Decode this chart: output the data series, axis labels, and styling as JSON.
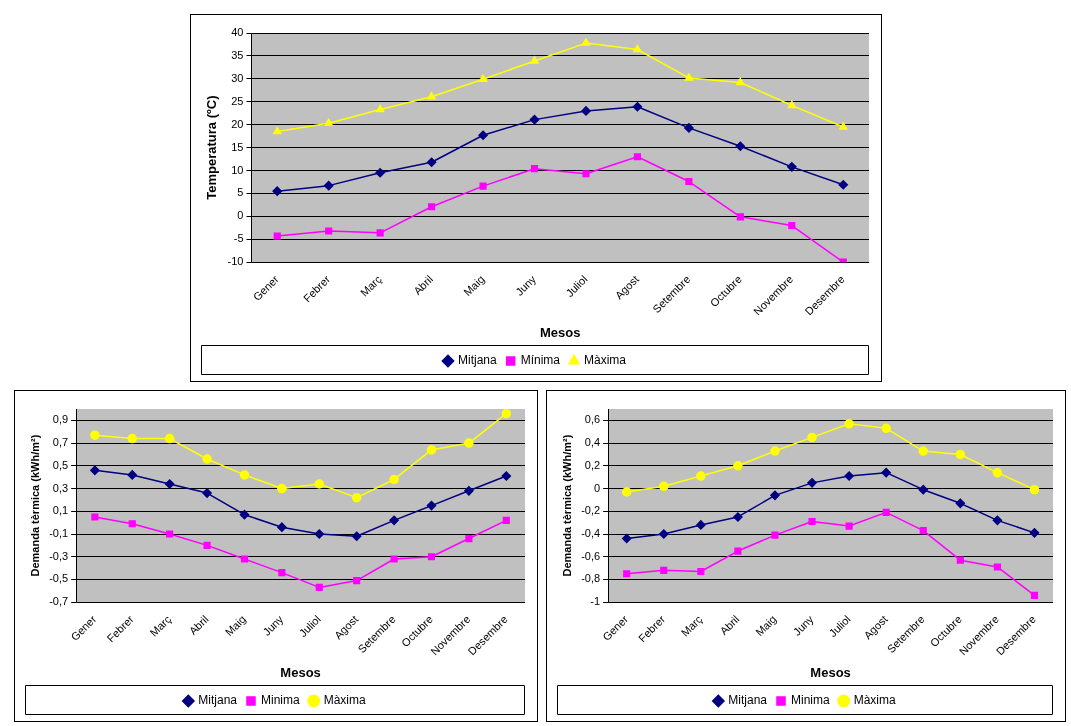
{
  "chart_data": [
    {
      "type": "line",
      "xlabel": "Mesos",
      "ylabel": "Temperatura (ºC)",
      "categories": [
        "Gener",
        "Febrer",
        "Març",
        "Abril",
        "Maig",
        "Juny",
        "Juliol",
        "Agost",
        "Setembre",
        "Octubre",
        "Novembre",
        "Desembre"
      ],
      "series": [
        {
          "name": "Mitjana",
          "color": "#000080",
          "marker": "diamond",
          "values": [
            5.5,
            6.7,
            9.5,
            11.8,
            17.7,
            21.1,
            23,
            23.9,
            19.3,
            15.3,
            10.8,
            6.9
          ]
        },
        {
          "name": "Mínima",
          "color": "#ff00ff",
          "marker": "square",
          "values": [
            -4.3,
            -3.2,
            -3.6,
            2.1,
            6.6,
            10.4,
            9.3,
            13,
            7.6,
            -0.1,
            -2,
            -10
          ]
        },
        {
          "name": "Màxima",
          "color": "#ffff00",
          "marker": "triangle",
          "values": [
            18.5,
            20.3,
            23.3,
            26.1,
            29.9,
            33.9,
            37.8,
            36.4,
            30.2,
            29.2,
            24.2,
            19.5
          ]
        }
      ],
      "ylim": [
        -10,
        40
      ],
      "yticks": [
        -10,
        -5,
        0,
        5,
        10,
        15,
        20,
        25,
        30,
        35,
        40
      ],
      "grid": "y",
      "legend": "bottom"
    },
    {
      "type": "line",
      "xlabel": "Mesos",
      "ylabel": "Demanda tèrmica (kWh/m²)",
      "categories": [
        "Gener",
        "Febrer",
        "Març",
        "Abril",
        "Maig",
        "Juny",
        "Juliol",
        "Agost",
        "Setembre",
        "Octubre",
        "Novembre",
        "Desembre"
      ],
      "series": [
        {
          "name": "Mitjana",
          "color": "#000080",
          "marker": "diamond",
          "values": [
            0.46,
            0.42,
            0.34,
            0.26,
            0.07,
            -0.04,
            -0.1,
            -0.12,
            0.02,
            0.15,
            0.28,
            0.41
          ]
        },
        {
          "name": "Minima",
          "color": "#ff00ff",
          "marker": "square",
          "values": [
            0.05,
            -0.01,
            -0.1,
            -0.2,
            -0.32,
            -0.44,
            -0.57,
            -0.51,
            -0.32,
            -0.3,
            -0.14,
            0.02
          ]
        },
        {
          "name": "Màxima",
          "color": "#ffff00",
          "marker": "circle",
          "values": [
            0.77,
            0.74,
            0.74,
            0.56,
            0.42,
            0.3,
            0.34,
            0.22,
            0.38,
            0.64,
            0.7,
            0.96
          ]
        }
      ],
      "ylim": [
        -0.7,
        1.0
      ],
      "yticks": [
        {
          "value": -0.7,
          "label": "-0,7"
        },
        {
          "value": -0.5,
          "label": "-0,5"
        },
        {
          "value": -0.3,
          "label": "-0,3"
        },
        {
          "value": -0.1,
          "label": "-0,1"
        },
        {
          "value": 0.1,
          "label": "0,1"
        },
        {
          "value": 0.3,
          "label": "0,3"
        },
        {
          "value": 0.5,
          "label": "0,5"
        },
        {
          "value": 0.7,
          "label": "0,7"
        },
        {
          "value": 0.9,
          "label": "0,9"
        }
      ],
      "grid": "y",
      "legend": "bottom"
    },
    {
      "type": "line",
      "xlabel": "Mesos",
      "ylabel": "Demanda tèrmica (kWh/m²)",
      "categories": [
        "Gener",
        "Febrer",
        "Març",
        "Abril",
        "Maig",
        "Juny",
        "Juliol",
        "Agost",
        "Setembre",
        "Octubre",
        "Novembre",
        "Desembre"
      ],
      "series": [
        {
          "name": "Mitjana",
          "color": "#000080",
          "marker": "diamond",
          "values": [
            -0.44,
            -0.4,
            -0.32,
            -0.25,
            -0.06,
            0.05,
            0.11,
            0.14,
            -0.01,
            -0.13,
            -0.28,
            -0.39
          ]
        },
        {
          "name": "Minima",
          "color": "#ff00ff",
          "marker": "square",
          "values": [
            -0.75,
            -0.72,
            -0.73,
            -0.55,
            -0.41,
            -0.29,
            -0.33,
            -0.21,
            -0.37,
            -0.63,
            -0.69,
            -0.94
          ]
        },
        {
          "name": "Màxima",
          "color": "#ffff00",
          "marker": "circle",
          "values": [
            -0.03,
            0.02,
            0.11,
            0.2,
            0.33,
            0.45,
            0.57,
            0.53,
            0.33,
            0.3,
            0.14,
            -0.01
          ]
        }
      ],
      "ylim": [
        -1,
        0.7
      ],
      "yticks": [
        -1,
        {
          "value": -0.8,
          "label": "-0,8"
        },
        {
          "value": -0.6,
          "label": "-0,6"
        },
        {
          "value": -0.4,
          "label": "-0,4"
        },
        {
          "value": -0.2,
          "label": "-0,2"
        },
        0,
        {
          "value": 0.2,
          "label": "0,2"
        },
        {
          "value": 0.4,
          "label": "0,4"
        },
        {
          "value": 0.6,
          "label": "0,6"
        }
      ],
      "grid": "y",
      "legend": "bottom"
    }
  ]
}
